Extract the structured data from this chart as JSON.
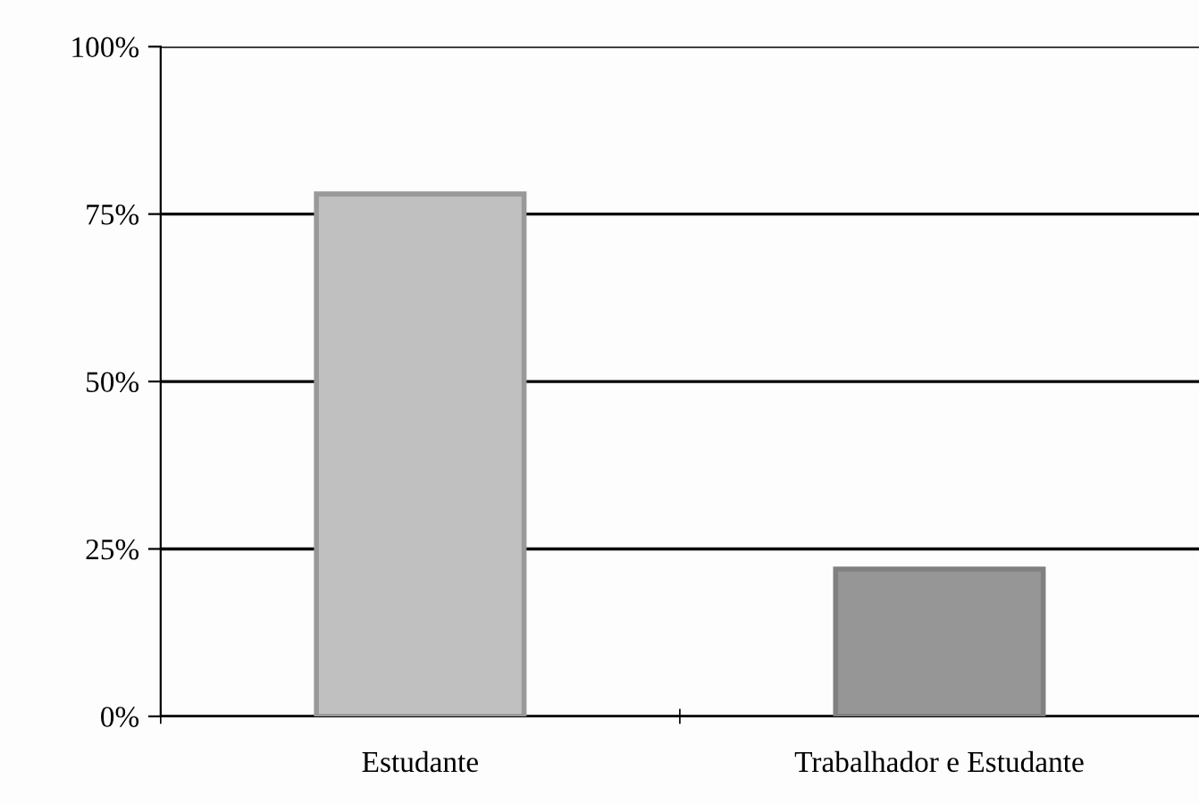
{
  "chart_data": {
    "type": "bar",
    "categories": [
      "Estudante",
      "Trabalhador e Estudante"
    ],
    "values": [
      78,
      22
    ],
    "colors": [
      "#c0c0c0",
      "#969696"
    ],
    "ylim": [
      0,
      100
    ],
    "yticks": [
      {
        "value": 0,
        "label": "0%"
      },
      {
        "value": 25,
        "label": "25%"
      },
      {
        "value": 50,
        "label": "50%"
      },
      {
        "value": 75,
        "label": "75%"
      },
      {
        "value": 100,
        "label": "100%"
      }
    ],
    "grid": "y"
  }
}
